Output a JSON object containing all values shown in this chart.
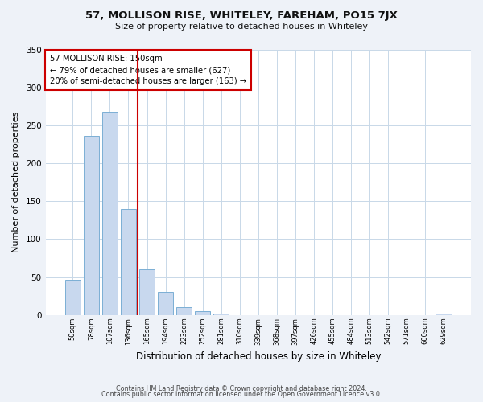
{
  "title": "57, MOLLISON RISE, WHITELEY, FAREHAM, PO15 7JX",
  "subtitle": "Size of property relative to detached houses in Whiteley",
  "xlabel": "Distribution of detached houses by size in Whiteley",
  "ylabel": "Number of detached properties",
  "bar_labels": [
    "50sqm",
    "78sqm",
    "107sqm",
    "136sqm",
    "165sqm",
    "194sqm",
    "223sqm",
    "252sqm",
    "281sqm",
    "310sqm",
    "339sqm",
    "368sqm",
    "397sqm",
    "426sqm",
    "455sqm",
    "484sqm",
    "513sqm",
    "542sqm",
    "571sqm",
    "600sqm",
    "629sqm"
  ],
  "bar_values": [
    46,
    236,
    268,
    140,
    60,
    31,
    10,
    5,
    2,
    0,
    0,
    0,
    0,
    0,
    0,
    0,
    0,
    0,
    0,
    0,
    2
  ],
  "bar_color": "#c8d8ee",
  "bar_edge_color": "#7bafd4",
  "vline_x": 3.5,
  "vline_color": "#cc0000",
  "annotation_title": "57 MOLLISON RISE: 150sqm",
  "annotation_line1": "← 79% of detached houses are smaller (627)",
  "annotation_line2": "20% of semi-detached houses are larger (163) →",
  "ylim": [
    0,
    350
  ],
  "yticks": [
    0,
    50,
    100,
    150,
    200,
    250,
    300,
    350
  ],
  "footer_line1": "Contains HM Land Registry data © Crown copyright and database right 2024.",
  "footer_line2": "Contains public sector information licensed under the Open Government Licence v3.0.",
  "bg_color": "#eef2f8",
  "plot_bg_color": "#ffffff",
  "grid_color": "#c8d8e8"
}
